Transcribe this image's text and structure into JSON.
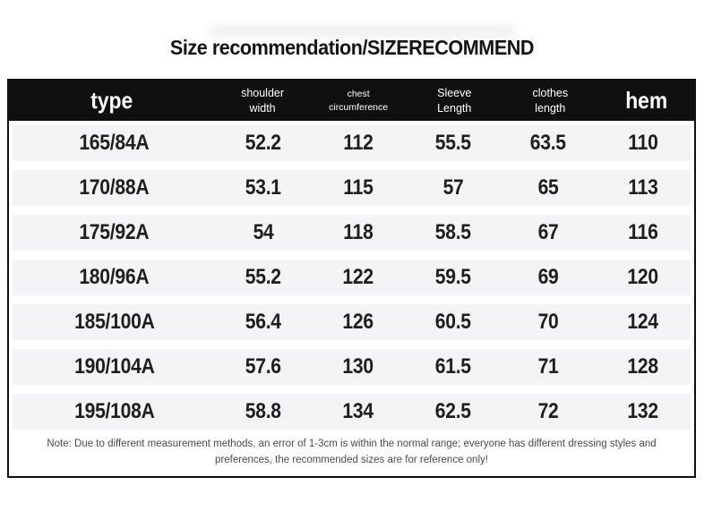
{
  "title": "Size recommendation/SIZERECOMMEND",
  "header": {
    "type": "type",
    "shoulder": [
      "shoulder",
      "width"
    ],
    "chest": [
      "chest",
      "circumference"
    ],
    "sleeve": [
      "Sleeve",
      "Length"
    ],
    "clothes": [
      "clothes",
      "length"
    ],
    "hem": "hem"
  },
  "chart_data": {
    "type": "table",
    "title": "Size recommendation/SIZERECOMMEND",
    "columns": [
      "type",
      "shoulder width",
      "chest circumference",
      "Sleeve Length",
      "clothes length",
      "hem"
    ],
    "rows": [
      [
        "165/84A",
        "52.2",
        "112",
        "55.5",
        "63.5",
        "110"
      ],
      [
        "170/88A",
        "53.1",
        "115",
        "57",
        "65",
        "113"
      ],
      [
        "175/92A",
        "54",
        "118",
        "58.5",
        "67",
        "116"
      ],
      [
        "180/96A",
        "55.2",
        "122",
        "59.5",
        "69",
        "120"
      ],
      [
        "185/100A",
        "56.4",
        "126",
        "60.5",
        "70",
        "124"
      ],
      [
        "190/104A",
        "57.6",
        "130",
        "61.5",
        "71",
        "128"
      ],
      [
        "195/108A",
        "58.8",
        "134",
        "62.5",
        "72",
        "132"
      ]
    ],
    "note": "Note: Due to different measurement methods, an error of 1-3cm is within the normal range; everyone has different dressing styles and preferences, the recommended sizes are for reference only!"
  },
  "colors": {
    "header_bg": "#101010",
    "header_text": "#ffffff",
    "row_stripe": "#f4f4f6",
    "data_text": "#1e1e1e",
    "note_text": "#4a4a4a",
    "border": "#101010",
    "background": "#ffffff"
  }
}
